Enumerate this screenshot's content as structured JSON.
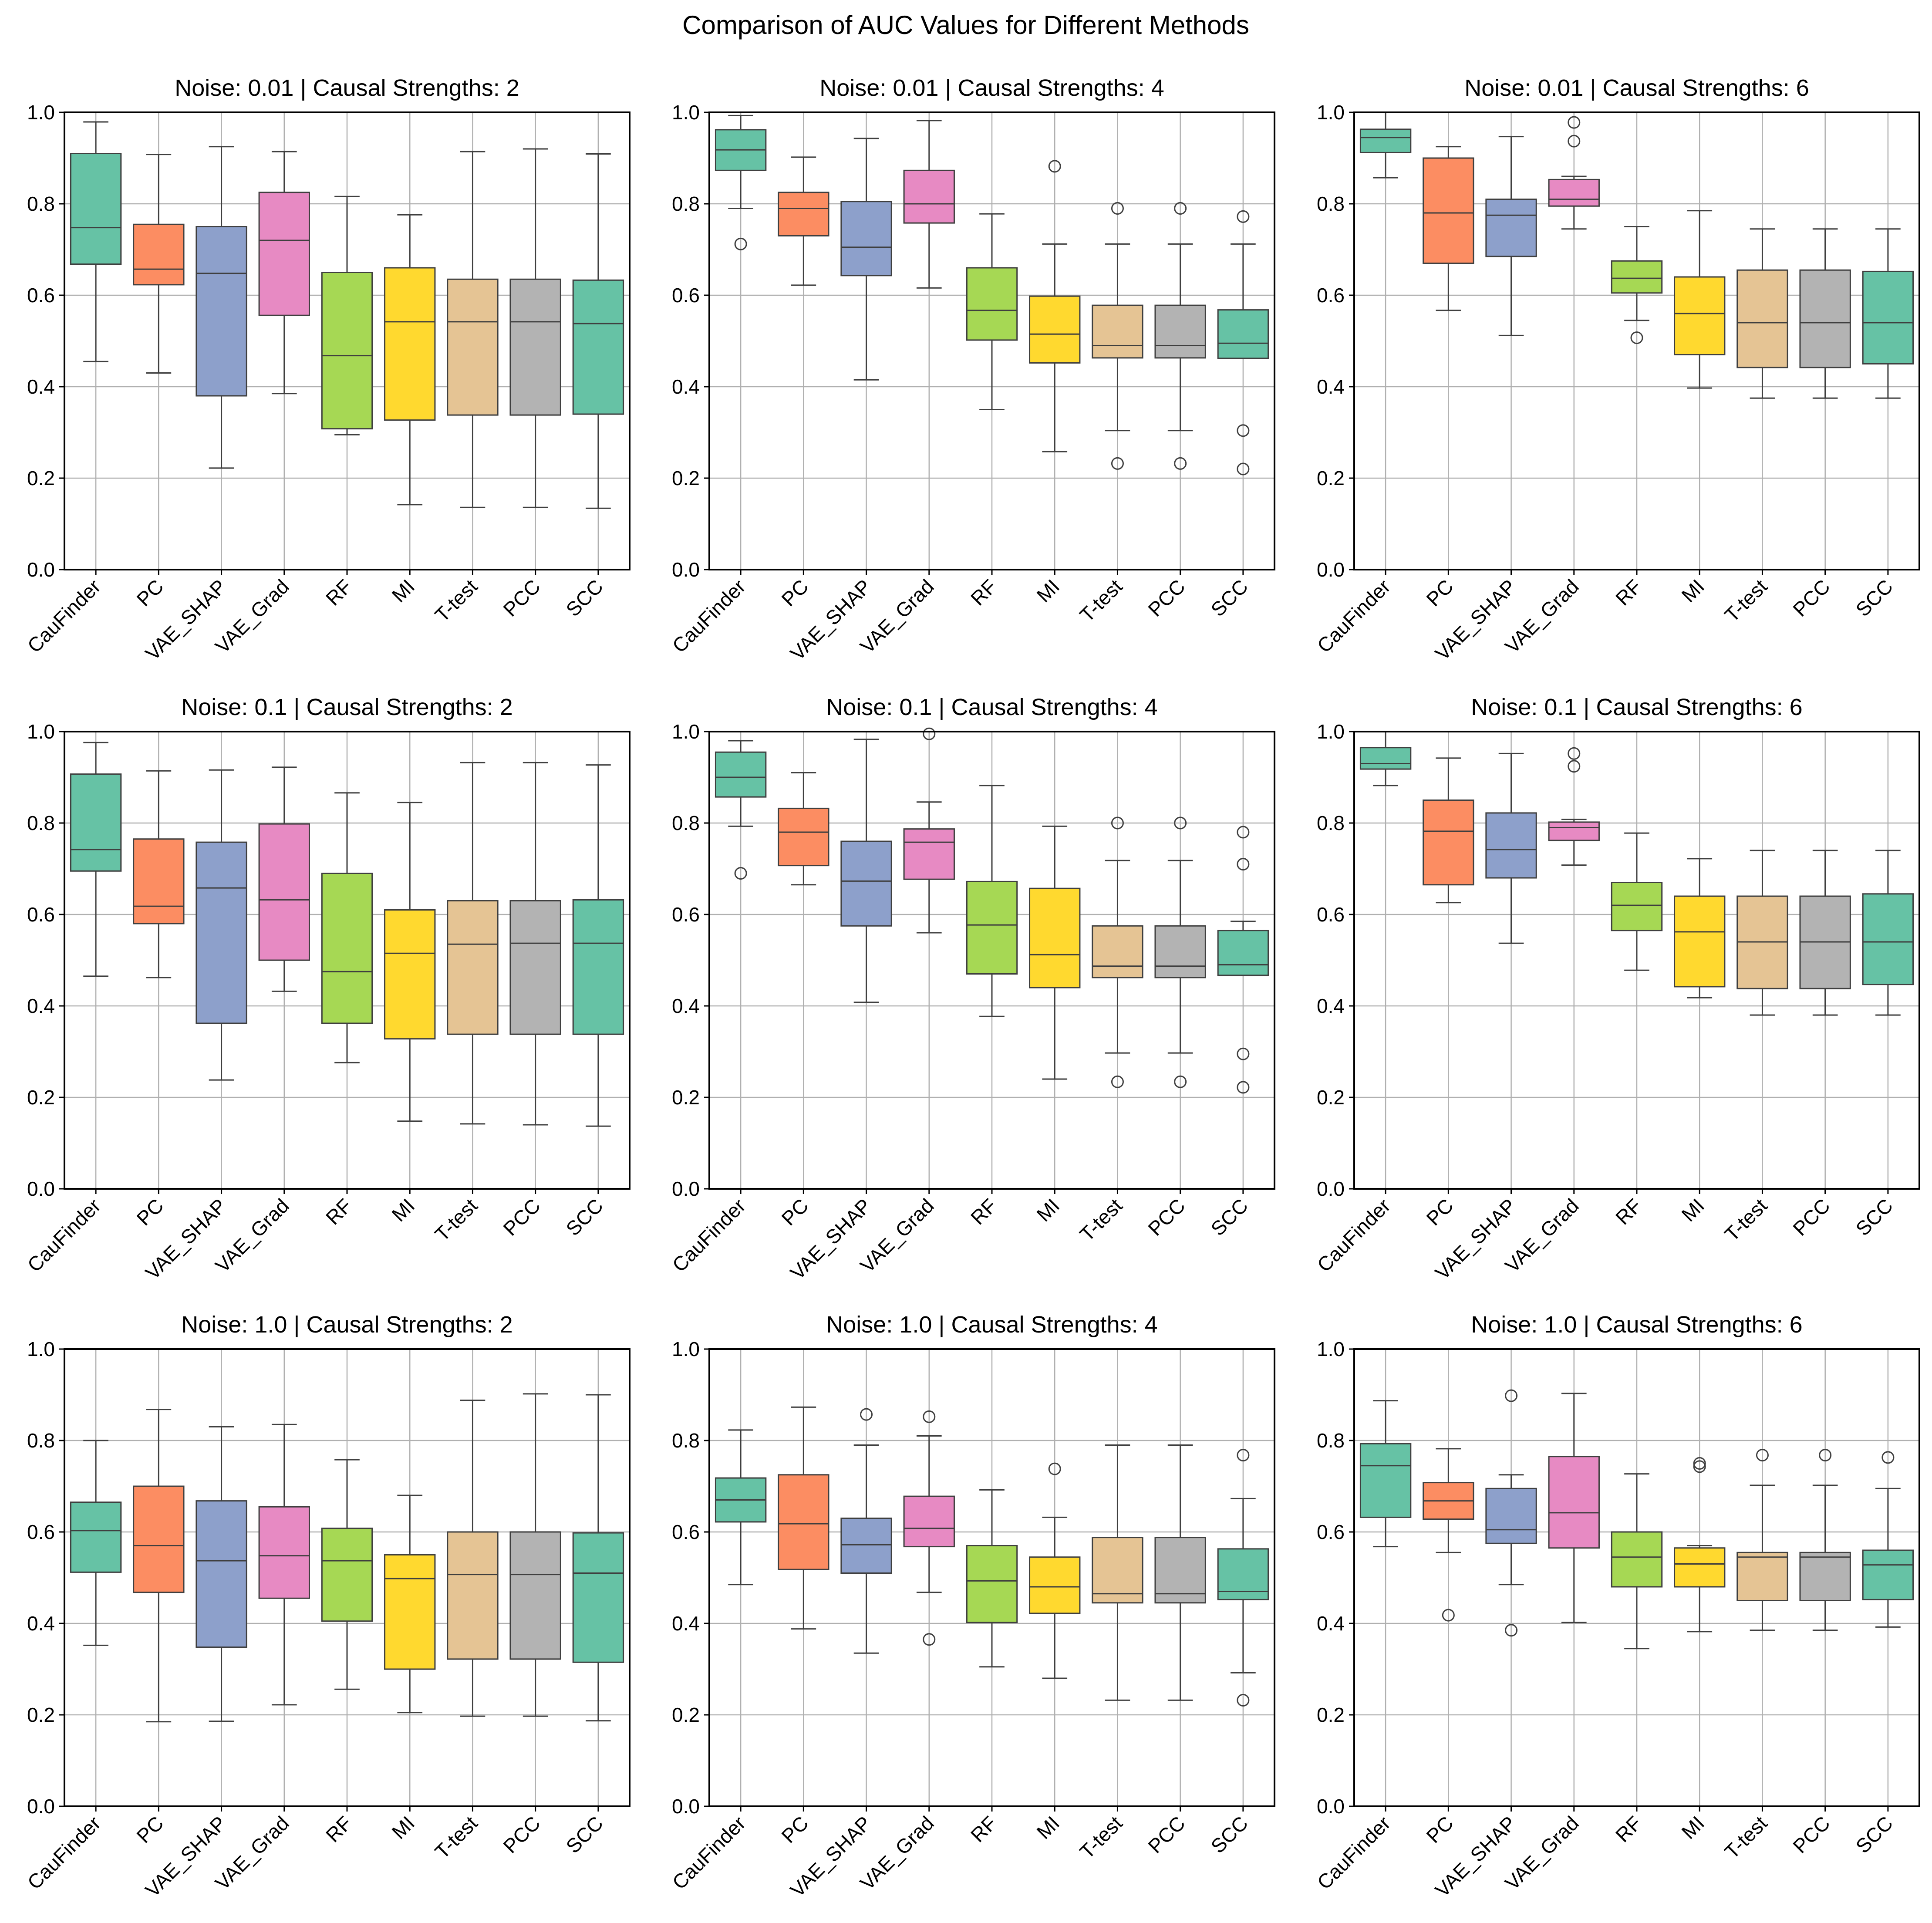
{
  "chart_data": {
    "type": "box",
    "title": "Comparison of AUC Values for Different Methods",
    "categories": [
      "CauFinder",
      "PC",
      "VAE_SHAP",
      "VAE_Grad",
      "RF",
      "MI",
      "T-test",
      "PCC",
      "SCC"
    ],
    "colors": [
      "#66c2a5",
      "#fc8d62",
      "#8da0cb",
      "#e78ac3",
      "#a6d854",
      "#ffd92f",
      "#e5c494",
      "#b3b3b3",
      "#66c2a5"
    ],
    "ylim": [
      0,
      1
    ],
    "yticks": [
      "0.0",
      "0.2",
      "0.4",
      "0.6",
      "0.8",
      "1.0"
    ],
    "grid": true,
    "panels": [
      {
        "title": "Noise: 0.01 | Causal Strengths: 2",
        "boxes": [
          {
            "min": 0.455,
            "q1": 0.668,
            "median": 0.748,
            "q3": 0.91,
            "max": 0.979,
            "outliers": []
          },
          {
            "min": 0.43,
            "q1": 0.623,
            "median": 0.657,
            "q3": 0.755,
            "max": 0.908,
            "outliers": []
          },
          {
            "min": 0.222,
            "q1": 0.38,
            "median": 0.648,
            "q3": 0.75,
            "max": 0.925,
            "outliers": []
          },
          {
            "min": 0.385,
            "q1": 0.556,
            "median": 0.72,
            "q3": 0.825,
            "max": 0.914,
            "outliers": []
          },
          {
            "min": 0.295,
            "q1": 0.308,
            "median": 0.468,
            "q3": 0.65,
            "max": 0.816,
            "outliers": []
          },
          {
            "min": 0.142,
            "q1": 0.327,
            "median": 0.542,
            "q3": 0.66,
            "max": 0.776,
            "outliers": []
          },
          {
            "min": 0.136,
            "q1": 0.338,
            "median": 0.542,
            "q3": 0.635,
            "max": 0.914,
            "outliers": []
          },
          {
            "min": 0.136,
            "q1": 0.338,
            "median": 0.542,
            "q3": 0.635,
            "max": 0.92,
            "outliers": []
          },
          {
            "min": 0.134,
            "q1": 0.34,
            "median": 0.538,
            "q3": 0.633,
            "max": 0.909,
            "outliers": []
          }
        ]
      },
      {
        "title": "Noise: 0.01 | Causal Strengths: 4",
        "boxes": [
          {
            "min": 0.79,
            "q1": 0.873,
            "median": 0.918,
            "q3": 0.962,
            "max": 0.993,
            "outliers": [
              0.712
            ]
          },
          {
            "min": 0.622,
            "q1": 0.73,
            "median": 0.79,
            "q3": 0.825,
            "max": 0.902,
            "outliers": []
          },
          {
            "min": 0.415,
            "q1": 0.643,
            "median": 0.705,
            "q3": 0.805,
            "max": 0.943,
            "outliers": []
          },
          {
            "min": 0.616,
            "q1": 0.758,
            "median": 0.8,
            "q3": 0.873,
            "max": 0.982,
            "outliers": []
          },
          {
            "min": 0.35,
            "q1": 0.502,
            "median": 0.567,
            "q3": 0.66,
            "max": 0.778,
            "outliers": []
          },
          {
            "min": 0.258,
            "q1": 0.452,
            "median": 0.515,
            "q3": 0.598,
            "max": 0.712,
            "outliers": [
              0.882
            ]
          },
          {
            "min": 0.304,
            "q1": 0.463,
            "median": 0.49,
            "q3": 0.578,
            "max": 0.712,
            "outliers": [
              0.79,
              0.232
            ]
          },
          {
            "min": 0.304,
            "q1": 0.463,
            "median": 0.49,
            "q3": 0.578,
            "max": 0.712,
            "outliers": [
              0.79,
              0.232
            ]
          },
          {
            "min": 0.462,
            "q1": 0.462,
            "median": 0.495,
            "q3": 0.568,
            "max": 0.712,
            "outliers": [
              0.772,
              0.304,
              0.22
            ]
          }
        ]
      },
      {
        "title": "Noise: 0.01 | Causal Strengths: 6",
        "boxes": [
          {
            "min": 0.857,
            "q1": 0.912,
            "median": 0.945,
            "q3": 0.963,
            "max": 1.0,
            "outliers": []
          },
          {
            "min": 0.567,
            "q1": 0.67,
            "median": 0.78,
            "q3": 0.9,
            "max": 0.925,
            "outliers": []
          },
          {
            "min": 0.512,
            "q1": 0.685,
            "median": 0.775,
            "q3": 0.81,
            "max": 0.947,
            "outliers": []
          },
          {
            "min": 0.745,
            "q1": 0.795,
            "median": 0.81,
            "q3": 0.853,
            "max": 0.86,
            "outliers": [
              0.978,
              0.937
            ]
          },
          {
            "min": 0.545,
            "q1": 0.605,
            "median": 0.637,
            "q3": 0.675,
            "max": 0.75,
            "outliers": [
              0.507
            ]
          },
          {
            "min": 0.397,
            "q1": 0.47,
            "median": 0.56,
            "q3": 0.64,
            "max": 0.785,
            "outliers": []
          },
          {
            "min": 0.375,
            "q1": 0.442,
            "median": 0.54,
            "q3": 0.655,
            "max": 0.745,
            "outliers": []
          },
          {
            "min": 0.375,
            "q1": 0.442,
            "median": 0.54,
            "q3": 0.655,
            "max": 0.745,
            "outliers": []
          },
          {
            "min": 0.375,
            "q1": 0.45,
            "median": 0.54,
            "q3": 0.652,
            "max": 0.745,
            "outliers": []
          }
        ]
      },
      {
        "title": "Noise: 0.1 | Causal Strengths: 2",
        "boxes": [
          {
            "min": 0.465,
            "q1": 0.695,
            "median": 0.742,
            "q3": 0.907,
            "max": 0.976,
            "outliers": []
          },
          {
            "min": 0.462,
            "q1": 0.58,
            "median": 0.618,
            "q3": 0.765,
            "max": 0.914,
            "outliers": []
          },
          {
            "min": 0.238,
            "q1": 0.362,
            "median": 0.658,
            "q3": 0.758,
            "max": 0.916,
            "outliers": []
          },
          {
            "min": 0.432,
            "q1": 0.5,
            "median": 0.632,
            "q3": 0.798,
            "max": 0.922,
            "outliers": []
          },
          {
            "min": 0.276,
            "q1": 0.362,
            "median": 0.475,
            "q3": 0.69,
            "max": 0.866,
            "outliers": []
          },
          {
            "min": 0.148,
            "q1": 0.328,
            "median": 0.515,
            "q3": 0.61,
            "max": 0.845,
            "outliers": []
          },
          {
            "min": 0.142,
            "q1": 0.338,
            "median": 0.535,
            "q3": 0.63,
            "max": 0.932,
            "outliers": []
          },
          {
            "min": 0.14,
            "q1": 0.338,
            "median": 0.537,
            "q3": 0.63,
            "max": 0.932,
            "outliers": []
          },
          {
            "min": 0.137,
            "q1": 0.338,
            "median": 0.537,
            "q3": 0.632,
            "max": 0.927,
            "outliers": []
          }
        ]
      },
      {
        "title": "Noise: 0.1 | Causal Strengths: 4",
        "boxes": [
          {
            "min": 0.793,
            "q1": 0.857,
            "median": 0.9,
            "q3": 0.955,
            "max": 0.98,
            "outliers": [
              0.69
            ]
          },
          {
            "min": 0.665,
            "q1": 0.707,
            "median": 0.78,
            "q3": 0.832,
            "max": 0.91,
            "outliers": []
          },
          {
            "min": 0.408,
            "q1": 0.575,
            "median": 0.673,
            "q3": 0.76,
            "max": 0.983,
            "outliers": []
          },
          {
            "min": 0.56,
            "q1": 0.677,
            "median": 0.758,
            "q3": 0.787,
            "max": 0.846,
            "outliers": [
              0.995
            ]
          },
          {
            "min": 0.377,
            "q1": 0.47,
            "median": 0.577,
            "q3": 0.672,
            "max": 0.882,
            "outliers": []
          },
          {
            "min": 0.24,
            "q1": 0.44,
            "median": 0.512,
            "q3": 0.657,
            "max": 0.793,
            "outliers": []
          },
          {
            "min": 0.297,
            "q1": 0.462,
            "median": 0.487,
            "q3": 0.575,
            "max": 0.718,
            "outliers": [
              0.8,
              0.234
            ]
          },
          {
            "min": 0.297,
            "q1": 0.462,
            "median": 0.487,
            "q3": 0.575,
            "max": 0.718,
            "outliers": [
              0.8,
              0.234
            ]
          },
          {
            "min": 0.467,
            "q1": 0.467,
            "median": 0.49,
            "q3": 0.565,
            "max": 0.585,
            "outliers": [
              0.78,
              0.71,
              0.295,
              0.222
            ]
          }
        ]
      },
      {
        "title": "Noise: 0.1 | Causal Strengths: 6",
        "boxes": [
          {
            "min": 0.882,
            "q1": 0.918,
            "median": 0.93,
            "q3": 0.965,
            "max": 1.0,
            "outliers": []
          },
          {
            "min": 0.626,
            "q1": 0.665,
            "median": 0.782,
            "q3": 0.85,
            "max": 0.942,
            "outliers": []
          },
          {
            "min": 0.537,
            "q1": 0.68,
            "median": 0.742,
            "q3": 0.822,
            "max": 0.952,
            "outliers": []
          },
          {
            "min": 0.708,
            "q1": 0.762,
            "median": 0.79,
            "q3": 0.802,
            "max": 0.808,
            "outliers": [
              0.952,
              0.924
            ]
          },
          {
            "min": 0.478,
            "q1": 0.565,
            "median": 0.62,
            "q3": 0.67,
            "max": 0.778,
            "outliers": []
          },
          {
            "min": 0.418,
            "q1": 0.442,
            "median": 0.562,
            "q3": 0.64,
            "max": 0.722,
            "outliers": []
          },
          {
            "min": 0.38,
            "q1": 0.438,
            "median": 0.54,
            "q3": 0.64,
            "max": 0.74,
            "outliers": []
          },
          {
            "min": 0.38,
            "q1": 0.438,
            "median": 0.54,
            "q3": 0.64,
            "max": 0.74,
            "outliers": []
          },
          {
            "min": 0.38,
            "q1": 0.447,
            "median": 0.54,
            "q3": 0.645,
            "max": 0.74,
            "outliers": []
          }
        ]
      },
      {
        "title": "Noise: 1.0 | Causal Strengths: 2",
        "boxes": [
          {
            "min": 0.352,
            "q1": 0.512,
            "median": 0.603,
            "q3": 0.665,
            "max": 0.8,
            "outliers": []
          },
          {
            "min": 0.185,
            "q1": 0.468,
            "median": 0.57,
            "q3": 0.7,
            "max": 0.868,
            "outliers": []
          },
          {
            "min": 0.186,
            "q1": 0.348,
            "median": 0.537,
            "q3": 0.668,
            "max": 0.83,
            "outliers": []
          },
          {
            "min": 0.222,
            "q1": 0.455,
            "median": 0.548,
            "q3": 0.655,
            "max": 0.835,
            "outliers": []
          },
          {
            "min": 0.256,
            "q1": 0.405,
            "median": 0.537,
            "q3": 0.608,
            "max": 0.758,
            "outliers": []
          },
          {
            "min": 0.205,
            "q1": 0.3,
            "median": 0.498,
            "q3": 0.55,
            "max": 0.68,
            "outliers": []
          },
          {
            "min": 0.197,
            "q1": 0.322,
            "median": 0.507,
            "q3": 0.6,
            "max": 0.888,
            "outliers": []
          },
          {
            "min": 0.197,
            "q1": 0.322,
            "median": 0.507,
            "q3": 0.6,
            "max": 0.902,
            "outliers": []
          },
          {
            "min": 0.187,
            "q1": 0.315,
            "median": 0.51,
            "q3": 0.598,
            "max": 0.9,
            "outliers": []
          }
        ]
      },
      {
        "title": "Noise: 1.0 | Causal Strengths: 4",
        "boxes": [
          {
            "min": 0.485,
            "q1": 0.622,
            "median": 0.67,
            "q3": 0.718,
            "max": 0.823,
            "outliers": []
          },
          {
            "min": 0.388,
            "q1": 0.518,
            "median": 0.618,
            "q3": 0.725,
            "max": 0.873,
            "outliers": []
          },
          {
            "min": 0.335,
            "q1": 0.51,
            "median": 0.572,
            "q3": 0.63,
            "max": 0.79,
            "outliers": [
              0.857
            ]
          },
          {
            "min": 0.468,
            "q1": 0.568,
            "median": 0.608,
            "q3": 0.678,
            "max": 0.81,
            "outliers": [
              0.852,
              0.365
            ]
          },
          {
            "min": 0.305,
            "q1": 0.402,
            "median": 0.493,
            "q3": 0.57,
            "max": 0.692,
            "outliers": []
          },
          {
            "min": 0.28,
            "q1": 0.422,
            "median": 0.48,
            "q3": 0.545,
            "max": 0.632,
            "outliers": [
              0.738
            ]
          },
          {
            "min": 0.232,
            "q1": 0.445,
            "median": 0.465,
            "q3": 0.588,
            "max": 0.79,
            "outliers": []
          },
          {
            "min": 0.232,
            "q1": 0.445,
            "median": 0.465,
            "q3": 0.588,
            "max": 0.79,
            "outliers": []
          },
          {
            "min": 0.292,
            "q1": 0.452,
            "median": 0.47,
            "q3": 0.563,
            "max": 0.673,
            "outliers": [
              0.768,
              0.232
            ]
          }
        ]
      },
      {
        "title": "Noise: 1.0 | Causal Strengths: 6",
        "boxes": [
          {
            "min": 0.568,
            "q1": 0.632,
            "median": 0.745,
            "q3": 0.793,
            "max": 0.887,
            "outliers": []
          },
          {
            "min": 0.555,
            "q1": 0.628,
            "median": 0.668,
            "q3": 0.708,
            "max": 0.782,
            "outliers": [
              0.418
            ]
          },
          {
            "min": 0.485,
            "q1": 0.575,
            "median": 0.605,
            "q3": 0.695,
            "max": 0.725,
            "outliers": [
              0.898,
              0.385
            ]
          },
          {
            "min": 0.402,
            "q1": 0.565,
            "median": 0.642,
            "q3": 0.765,
            "max": 0.903,
            "outliers": []
          },
          {
            "min": 0.345,
            "q1": 0.48,
            "median": 0.545,
            "q3": 0.6,
            "max": 0.727,
            "outliers": []
          },
          {
            "min": 0.382,
            "q1": 0.48,
            "median": 0.53,
            "q3": 0.565,
            "max": 0.57,
            "outliers": [
              0.75,
              0.743
            ]
          },
          {
            "min": 0.385,
            "q1": 0.45,
            "median": 0.545,
            "q3": 0.555,
            "max": 0.702,
            "outliers": [
              0.768
            ]
          },
          {
            "min": 0.385,
            "q1": 0.45,
            "median": 0.545,
            "q3": 0.555,
            "max": 0.702,
            "outliers": [
              0.768
            ]
          },
          {
            "min": 0.392,
            "q1": 0.452,
            "median": 0.528,
            "q3": 0.56,
            "max": 0.695,
            "outliers": [
              0.763
            ]
          }
        ]
      }
    ]
  }
}
